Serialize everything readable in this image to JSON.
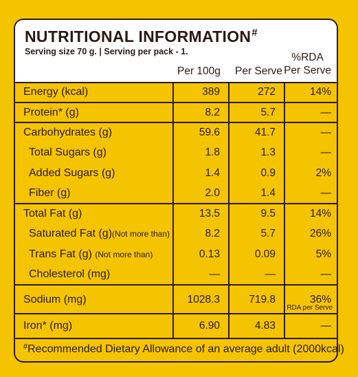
{
  "header": {
    "title": "NUTRITIONAL INFORMATION",
    "title_mark": "#",
    "serving": "Serving size 70 g.  |  Serving per pack - 1.",
    "col_per100g": "Per 100g",
    "col_perserve": "Per Serve",
    "col_rda_line1": "%RDA",
    "col_rda_line2": "Per Serve"
  },
  "rows": [
    {
      "name": "Energy (kcal)",
      "per100g": "389",
      "perserve": "272",
      "rda": "14%"
    },
    {
      "name": "Protein* (g)",
      "per100g": "8.2",
      "perserve": "5.7",
      "rda": "—"
    },
    {
      "name": "Carbohydrates (g)",
      "per100g": "59.6",
      "perserve": "41.7",
      "rda": "—"
    },
    {
      "name": "Total Sugars (g)",
      "per100g": "1.8",
      "perserve": "1.3",
      "rda": "—"
    },
    {
      "name": "Added Sugars (g)",
      "per100g": "1.4",
      "perserve": "0.9",
      "rda": "2%"
    },
    {
      "name": "Fiber (g)",
      "per100g": "2.0",
      "perserve": "1.4",
      "rda": "—"
    },
    {
      "name": "Total Fat (g)",
      "per100g": "13.5",
      "perserve": "9.5",
      "rda": "14%"
    },
    {
      "name": "Saturated Fat (g)",
      "note": "(Not more than)",
      "per100g": "8.2",
      "perserve": "5.7",
      "rda": "26%"
    },
    {
      "name": "Trans Fat (g)",
      "note": "(Not more than)",
      "per100g": "0.13",
      "perserve": "0.09",
      "rda": "5%"
    },
    {
      "name": "Cholesterol (mg)",
      "per100g": "—",
      "perserve": "—",
      "rda": "—"
    },
    {
      "name": "Sodium (mg)",
      "per100g": "1028.3",
      "perserve": "719.8",
      "rda": "36%",
      "rda_note": "RDA per Serve"
    },
    {
      "name": "Iron* (mg)",
      "per100g": "6.90",
      "perserve": "4.83",
      "rda": "—"
    }
  ],
  "footer": {
    "mark": "#",
    "text": "Recommended Dietary Allowance of an average adult (2000kcal)"
  },
  "colors": {
    "background": "#f5c400",
    "header_bg": "#ffffff",
    "ink": "#2a1a12"
  }
}
